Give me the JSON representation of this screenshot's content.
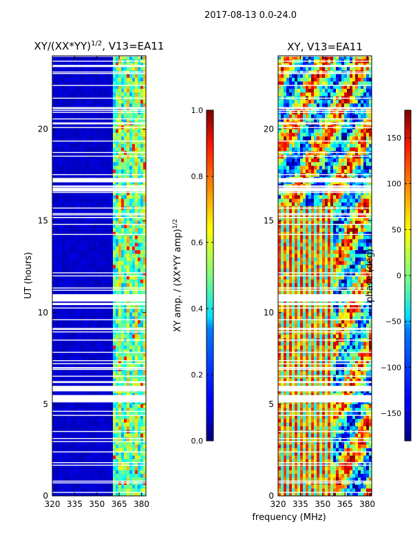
{
  "suptitle": "2017-08-13 0.0-24.0",
  "chart_data": [
    {
      "type": "heatmap",
      "title_main": "XY/(XX*YY)",
      "title_sup": "1/2",
      "title_rest": ", V13=EA11",
      "xlabel": "frequency (MHz)",
      "ylabel": "UT (hours)",
      "xlim": [
        320,
        383
      ],
      "ylim": [
        0,
        24
      ],
      "xticks": [
        320,
        335,
        350,
        365,
        380
      ],
      "yticks": [
        0,
        5,
        10,
        15,
        20
      ],
      "colormap": "jet",
      "colorbar": {
        "label_main": "XY amp. / (XX*YY amp)",
        "label_sup": "1/2",
        "range": [
          0.0,
          1.0
        ],
        "ticks": [
          "0.0",
          "0.2",
          "0.4",
          "0.6",
          "0.8",
          "1.0"
        ],
        "tick_values": [
          0.0,
          0.2,
          0.4,
          0.6,
          0.8,
          1.0
        ]
      },
      "bright_band_mhz": [
        360,
        383
      ],
      "data_gaps_hours": [
        [
          5.1,
          5.5
        ],
        [
          5.7,
          6.0
        ],
        [
          10.6,
          11.0
        ],
        [
          16.6,
          16.8
        ],
        [
          17.1,
          17.3
        ]
      ]
    },
    {
      "type": "heatmap",
      "title": "XY, V13=EA11",
      "xlim": [
        320,
        383
      ],
      "ylim": [
        0,
        24
      ],
      "xticks": [
        320,
        335,
        350,
        365,
        380
      ],
      "yticks": [
        0,
        5,
        10,
        15,
        20
      ],
      "colormap": "jet",
      "colorbar": {
        "label": "phase (deg)",
        "range": [
          -180,
          180
        ],
        "ticks": [
          "−150",
          "−100",
          "−50",
          "0",
          "50",
          "100",
          "150"
        ],
        "tick_values": [
          -150,
          -100,
          -50,
          0,
          50,
          100,
          150
        ]
      },
      "data_gaps_hours": [
        [
          5.1,
          5.5
        ],
        [
          5.7,
          6.0
        ],
        [
          10.6,
          11.0
        ],
        [
          16.6,
          16.8
        ],
        [
          17.1,
          17.3
        ]
      ]
    }
  ]
}
